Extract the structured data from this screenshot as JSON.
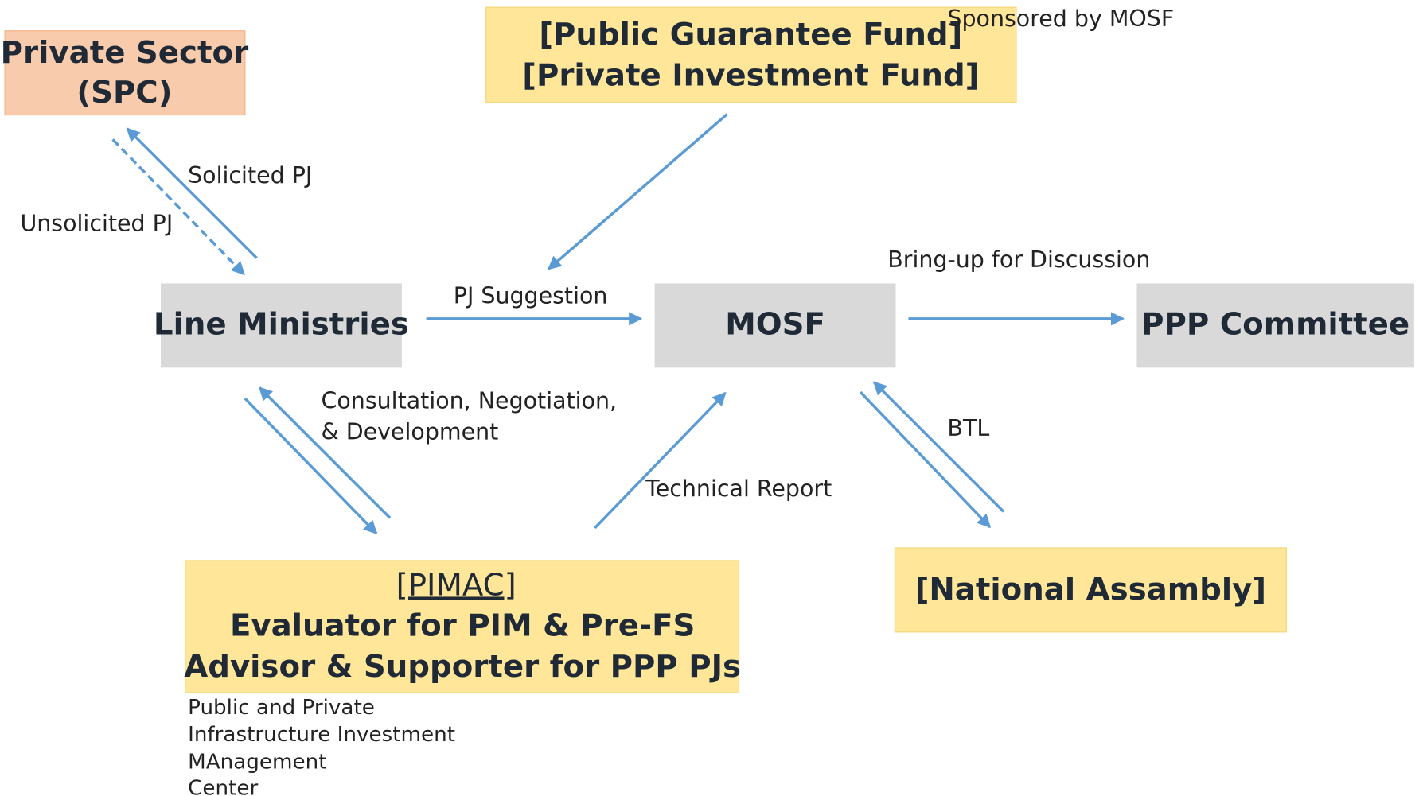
{
  "nodes": [
    {
      "lines": [
        "Private Sector",
        "(SPC)"
      ]
    },
    {
      "lines": [
        "[Public Guarantee Fund]",
        "[Private Investment Fund]"
      ]
    },
    {
      "lines": [
        "Line Ministries"
      ]
    },
    {
      "lines": [
        "MOSF"
      ]
    },
    {
      "lines": [
        "PPP Committee"
      ]
    },
    {
      "lines": [
        "[PIMAC]",
        "Evaluator for PIM & Pre-FS",
        "Advisor & Supporter for PPP PJs"
      ]
    },
    {
      "lines": [
        "[National Assambly]"
      ]
    }
  ],
  "edge_labels": [
    "Sponsored by MOSF",
    "Solicited PJ",
    "Unsolicited PJ",
    "PJ Suggestion",
    "Bring-up for Discussion",
    "Consultation, Negotiation,",
    "& Development",
    "Technical Report",
    "BTL"
  ],
  "pimac_note": [
    "Public and Private",
    "Infrastructure Investment",
    "MAnagement",
    "Center"
  ]
}
